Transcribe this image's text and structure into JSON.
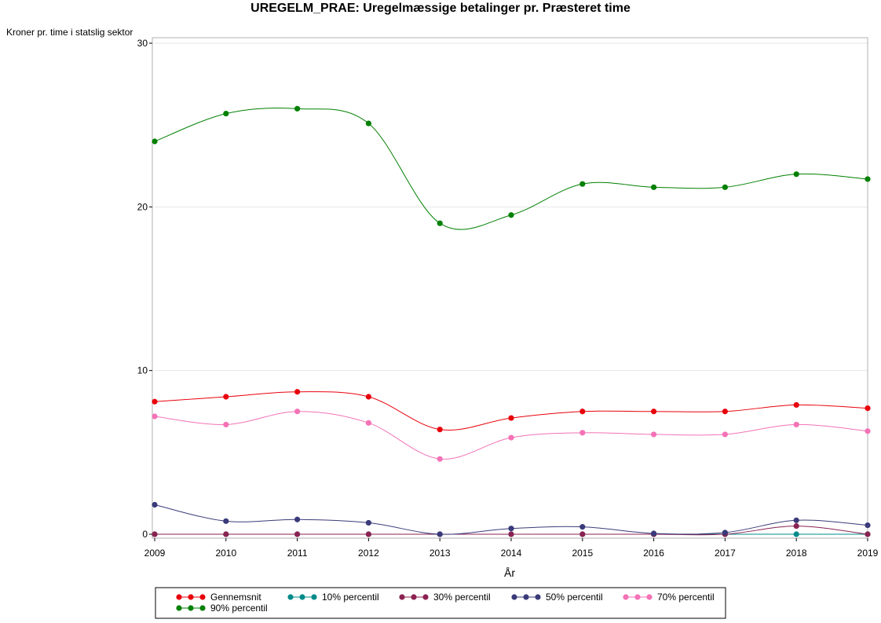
{
  "chart_data": {
    "type": "line",
    "title": "UREGELM_PRAE: Uregelmæssige betalinger pr. Præsteret time",
    "ylabel": "Kroner pr. time i statslig sektor",
    "xlabel": "År",
    "x": [
      2009,
      2010,
      2011,
      2012,
      2013,
      2014,
      2015,
      2016,
      2017,
      2018,
      2019
    ],
    "x_tick_labels": [
      "2009",
      "2010",
      "2011",
      "2012",
      "2013",
      "2014",
      "2015",
      "2016",
      "2017",
      "2018",
      "2019"
    ],
    "xlim": [
      2009,
      2019
    ],
    "ylim": [
      0,
      30
    ],
    "y_ticks": [
      0,
      10,
      20,
      30
    ],
    "y_tick_labels": [
      "0",
      "10",
      "20",
      "30"
    ],
    "grid": "horizontal",
    "legend_position": "bottom",
    "series": [
      {
        "name": "Gennemsnit",
        "color": "#e8000b",
        "values": [
          8.1,
          8.4,
          8.7,
          8.4,
          6.4,
          7.1,
          7.5,
          7.5,
          7.5,
          7.9,
          7.7
        ]
      },
      {
        "name": "10% percentil",
        "color": "#008b8b",
        "values": [
          0,
          0,
          0,
          0,
          0,
          0,
          0,
          0,
          0,
          0,
          0
        ]
      },
      {
        "name": "30% percentil",
        "color": "#8b2252",
        "values": [
          0,
          0,
          0,
          0,
          0,
          0,
          0,
          0,
          0,
          0.5,
          0
        ]
      },
      {
        "name": "50% percentil",
        "color": "#3a3a7a",
        "values": [
          1.8,
          0.8,
          0.9,
          0.7,
          0,
          0.35,
          0.45,
          0.05,
          0.1,
          0.85,
          0.55
        ]
      },
      {
        "name": "70% percentil",
        "color": "#f472b6",
        "values": [
          7.2,
          6.7,
          7.5,
          6.8,
          4.6,
          5.9,
          6.2,
          6.1,
          6.1,
          6.7,
          6.3
        ]
      },
      {
        "name": "90% percentil",
        "color": "#008000",
        "values": [
          24.0,
          25.7,
          26.0,
          25.1,
          19.0,
          19.5,
          21.4,
          21.2,
          21.2,
          22.0,
          21.7
        ]
      }
    ]
  }
}
